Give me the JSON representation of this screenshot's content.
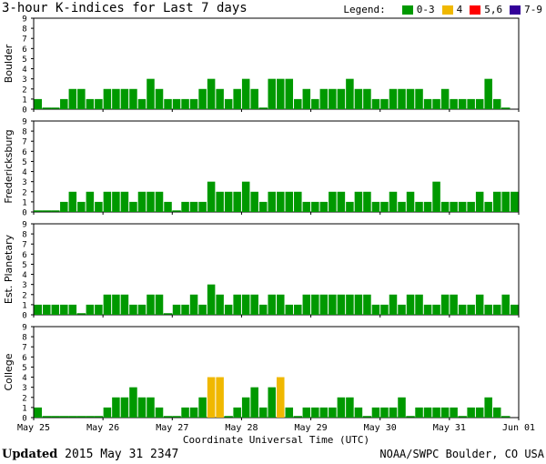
{
  "title": "3-hour K-indices for Last 7 days",
  "legend": {
    "label": "Legend:",
    "items": [
      {
        "label": "0-3",
        "color": "#009900"
      },
      {
        "label": "4",
        "color": "#f0b800"
      },
      {
        "label": "5,6",
        "color": "#ff0000"
      },
      {
        "label": "7-9",
        "color": "#330099"
      }
    ]
  },
  "footer": {
    "updated_label": "Updated",
    "updated_value": "2015 May 31 2347",
    "credit": "NOAA/SWPC Boulder, CO USA"
  },
  "chart_data": {
    "type": "bar",
    "xlabel": "Coordinate Universal Time (UTC)",
    "ylim": [
      0,
      9
    ],
    "y_ticks": [
      "0",
      "1",
      "2",
      "3",
      "4",
      "5",
      "6",
      "7",
      "8",
      "9"
    ],
    "x_ticks": [
      "May 25",
      "May 26",
      "May 27",
      "May 28",
      "May 29",
      "May 30",
      "May 31",
      "Jun 01"
    ],
    "grid": false,
    "panels": [
      {
        "name": "Boulder",
        "values": [
          1,
          0,
          0,
          1,
          2,
          2,
          1,
          1,
          2,
          2,
          2,
          2,
          1,
          3,
          2,
          1,
          1,
          1,
          1,
          2,
          3,
          2,
          1,
          2,
          3,
          2,
          0,
          3,
          3,
          3,
          1,
          2,
          1,
          2,
          2,
          2,
          3,
          2,
          2,
          1,
          1,
          2,
          2,
          2,
          2,
          1,
          1,
          2,
          1,
          1,
          1,
          1,
          3,
          1,
          0,
          null
        ]
      },
      {
        "name": "Fredericksburg",
        "values": [
          0,
          0,
          0,
          1,
          2,
          1,
          2,
          1,
          2,
          2,
          2,
          1,
          2,
          2,
          2,
          1,
          0,
          1,
          1,
          1,
          3,
          2,
          2,
          2,
          3,
          2,
          1,
          2,
          2,
          2,
          2,
          1,
          1,
          1,
          2,
          2,
          1,
          2,
          2,
          1,
          1,
          2,
          1,
          2,
          1,
          1,
          3,
          1,
          1,
          1,
          1,
          2,
          1,
          2,
          2,
          2
        ]
      },
      {
        "name": "Est. Planetary",
        "values": [
          1,
          1,
          1,
          1,
          1,
          0,
          1,
          1,
          2,
          2,
          2,
          1,
          1,
          2,
          2,
          0,
          1,
          1,
          2,
          1,
          3,
          2,
          1,
          2,
          2,
          2,
          1,
          2,
          2,
          1,
          1,
          2,
          2,
          2,
          2,
          2,
          2,
          2,
          2,
          1,
          1,
          2,
          1,
          2,
          2,
          1,
          1,
          2,
          2,
          1,
          1,
          2,
          1,
          1,
          2,
          1
        ]
      },
      {
        "name": "College",
        "values": [
          1,
          0,
          0,
          0,
          0,
          0,
          0,
          0,
          1,
          2,
          2,
          3,
          2,
          2,
          1,
          0,
          0,
          1,
          1,
          2,
          4,
          4,
          0,
          1,
          2,
          3,
          1,
          3,
          4,
          1,
          0,
          1,
          1,
          1,
          1,
          2,
          2,
          1,
          0,
          1,
          1,
          1,
          2,
          0,
          1,
          1,
          1,
          1,
          1,
          0,
          1,
          1,
          2,
          1,
          0,
          null
        ]
      }
    ]
  }
}
